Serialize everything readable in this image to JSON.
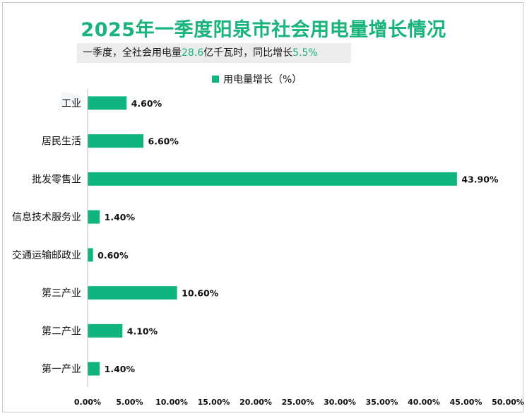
{
  "title": "2025年一季度阳泉市社会用电量增长情况",
  "subtitle": {
    "prefix": "一季度，全社会用电量",
    "value": "28.6",
    "middle": "亿千瓦时，同比增长",
    "rate": "5.5%"
  },
  "colors": {
    "bar": "#0fb47f",
    "title": "#19b47c"
  },
  "chart_data": {
    "type": "bar",
    "orientation": "horizontal",
    "categories": [
      "工业",
      "居民生活",
      "批发零售业",
      "信息技术服务业",
      "交通运输邮政业",
      "第三产业",
      "第二产业",
      "第一产业"
    ],
    "series": [
      {
        "name": "用电量增长（%）",
        "values": [
          4.6,
          6.6,
          43.9,
          1.4,
          0.6,
          10.6,
          4.1,
          1.4
        ]
      }
    ],
    "value_labels": [
      "4.60%",
      "6.60%",
      "43.90%",
      "1.40%",
      "0.60%",
      "10.60%",
      "4.10%",
      "1.40%"
    ],
    "xlim": [
      0,
      50
    ],
    "xticks": [
      0,
      5,
      10,
      15,
      20,
      25,
      30,
      35,
      40,
      45,
      50
    ],
    "xtick_labels": [
      "0.00%",
      "5.00%",
      "10.00%",
      "15.00%",
      "20.00%",
      "25.00%",
      "30.00%",
      "35.00%",
      "40.00%",
      "45.00%",
      "50.00%"
    ],
    "legend_position": "top-center",
    "grid": false
  }
}
